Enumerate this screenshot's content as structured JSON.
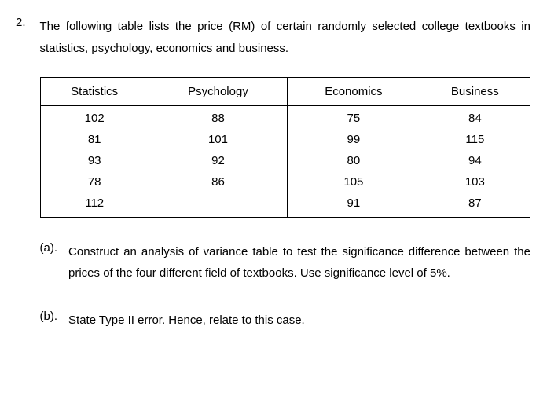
{
  "question": {
    "number": "2.",
    "intro": "The following table lists the price (RM) of certain randomly selected college textbooks in statistics, psychology, economics and business."
  },
  "table": {
    "columns": [
      "Statistics",
      "Psychology",
      "Economics",
      "Business"
    ],
    "rows": [
      [
        "102",
        "88",
        "75",
        "84"
      ],
      [
        "81",
        "101",
        "99",
        "115"
      ],
      [
        "93",
        "92",
        "80",
        "94"
      ],
      [
        "78",
        "86",
        "105",
        "103"
      ],
      [
        "112",
        "",
        "91",
        "87"
      ]
    ]
  },
  "parts": {
    "a": {
      "label": "(a).",
      "text": "Construct an analysis of variance table to test the significance difference between the prices of the four different field of textbooks. Use significance level of 5%."
    },
    "b": {
      "label": "(b).",
      "text": "State Type II error. Hence, relate to this case."
    }
  }
}
